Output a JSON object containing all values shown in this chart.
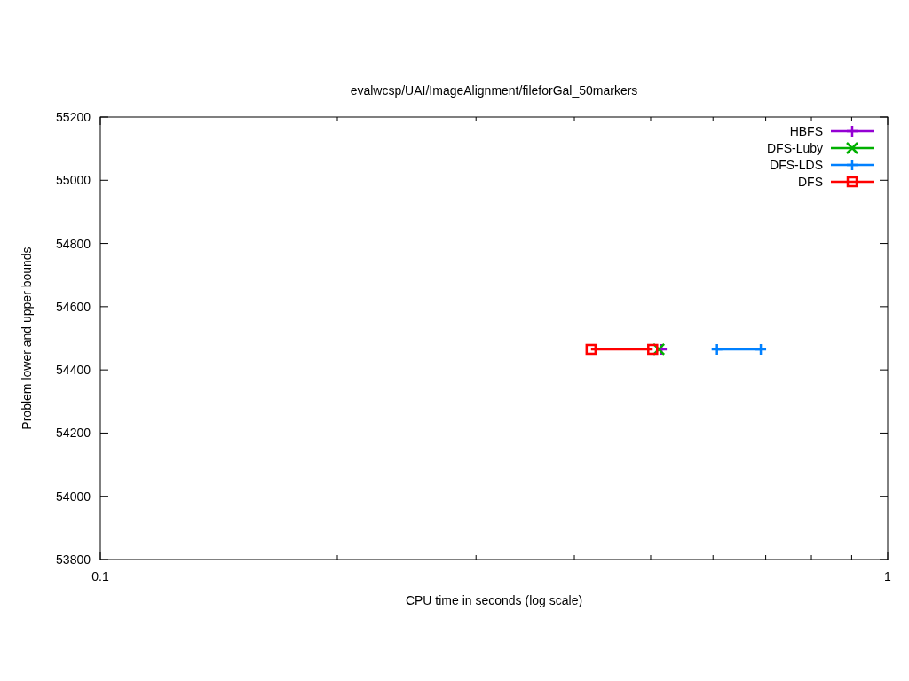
{
  "chart_data": {
    "type": "line",
    "title": "evalwcsp/UAI/ImageAlignment/fileforGal_50markers",
    "xlabel": "CPU time in seconds (log scale)",
    "ylabel": "Problem lower and upper bounds",
    "log": "x",
    "xlim": [
      0.1,
      1
    ],
    "ylim": [
      53800,
      55200
    ],
    "xticks": [
      0.1,
      {
        "value": 0.2,
        "label": null
      },
      {
        "value": 0.3,
        "label": null
      },
      {
        "value": 0.4,
        "label": null
      },
      {
        "value": 0.5,
        "label": null
      },
      {
        "value": 0.6,
        "label": null
      },
      {
        "value": 0.7,
        "label": null
      },
      {
        "value": 0.8,
        "label": null
      },
      {
        "value": 0.9,
        "label": null
      },
      1
    ],
    "yticks": [
      53800,
      54000,
      54200,
      54400,
      54600,
      54800,
      55000,
      55200
    ],
    "grid": false,
    "legend": "top right",
    "series": [
      {
        "name": "HBFS",
        "color": "#9400d3",
        "marker": "cross",
        "x": [
          0.516
        ],
        "values": [
          54465
        ]
      },
      {
        "name": "DFS-Luby",
        "color": "#00b000",
        "marker": "x",
        "x": [
          0.512
        ],
        "values": [
          54465
        ]
      },
      {
        "name": "DFS-LDS",
        "color": "#0080ff",
        "marker": "cross",
        "x": [
          0.607,
          0.69
        ],
        "values": [
          54465,
          54465
        ]
      },
      {
        "name": "DFS",
        "color": "#ff0000",
        "marker": "square",
        "x": [
          0.42,
          0.503
        ],
        "values": [
          54465,
          54465
        ]
      }
    ]
  }
}
